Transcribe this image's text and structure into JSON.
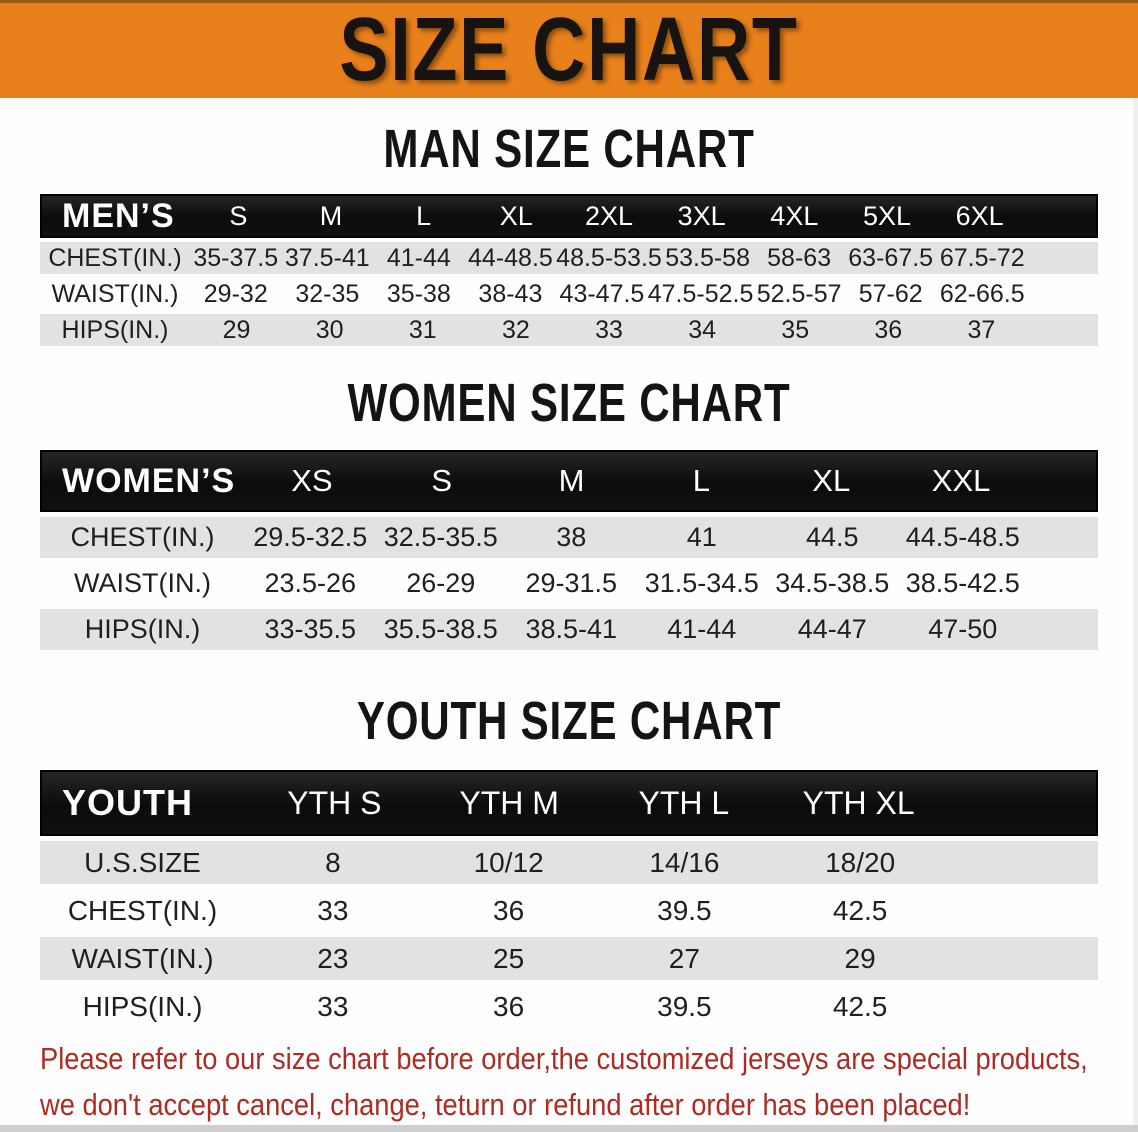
{
  "banner": {
    "title": "SIZE CHART",
    "bg_color": "#E8811C"
  },
  "sections": {
    "men": {
      "title": "MAN SIZE CHART",
      "table": {
        "corner_label": "MEN’S",
        "sizes": [
          "S",
          "M",
          "L",
          "XL",
          "2XL",
          "3XL",
          "4XL",
          "5XL",
          "6XL"
        ],
        "rows": [
          {
            "label": "CHEST(IN.)",
            "values": [
              "35-37.5",
              "37.5-41",
              "41-44",
              "44-48.5",
              "48.5-53.5",
              "53.5-58",
              "58-63",
              "63-67.5",
              "67.5-72"
            ]
          },
          {
            "label": "WAIST(IN.)",
            "values": [
              "29-32",
              "32-35",
              "35-38",
              "38-43",
              "43-47.5",
              "47.5-52.5",
              "52.5-57",
              "57-62",
              "62-66.5"
            ]
          },
          {
            "label": "HIPS(IN.)",
            "values": [
              "29",
              "30",
              "31",
              "32",
              "33",
              "34",
              "35",
              "36",
              "37"
            ]
          }
        ]
      }
    },
    "women": {
      "title": "WOMEN SIZE CHART",
      "table": {
        "corner_label": "WOMEN’S",
        "sizes": [
          "XS",
          "S",
          "M",
          "L",
          "XL",
          "XXL"
        ],
        "rows": [
          {
            "label": "CHEST(IN.)",
            "values": [
              "29.5-32.5",
              "32.5-35.5",
              "38",
              "41",
              "44.5",
              "44.5-48.5"
            ]
          },
          {
            "label": "WAIST(IN.)",
            "values": [
              "23.5-26",
              "26-29",
              "29-31.5",
              "31.5-34.5",
              "34.5-38.5",
              "38.5-42.5"
            ]
          },
          {
            "label": "HIPS(IN.)",
            "values": [
              "33-35.5",
              "35.5-38.5",
              "38.5-41",
              "41-44",
              "44-47",
              "47-50"
            ]
          }
        ]
      }
    },
    "youth": {
      "title": "YOUTH SIZE CHART",
      "table": {
        "corner_label": "YOUTH",
        "sizes": [
          "YTH S",
          "YTH M",
          "YTH L",
          "YTH XL"
        ],
        "rows": [
          {
            "label": "U.S.SIZE",
            "values": [
              "8",
              "10/12",
              "14/16",
              "18/20"
            ]
          },
          {
            "label": "CHEST(IN.)",
            "values": [
              "33",
              "36",
              "39.5",
              "42.5"
            ]
          },
          {
            "label": "WAIST(IN.)",
            "values": [
              "23",
              "25",
              "27",
              "29"
            ]
          },
          {
            "label": "HIPS(IN.)",
            "values": [
              "33",
              "36",
              "39.5",
              "42.5"
            ]
          }
        ]
      }
    }
  },
  "disclaimer": {
    "line1": "Please refer to our size chart before order,the customized jerseys are special products,",
    "line2": "we don't accept cancel, change, teturn or refund after order has been placed!",
    "color": "#AE2B23"
  },
  "colors": {
    "header_bar": "#111111",
    "row_stripe": "#E2E2E1",
    "banner_orange": "#E8811C"
  }
}
